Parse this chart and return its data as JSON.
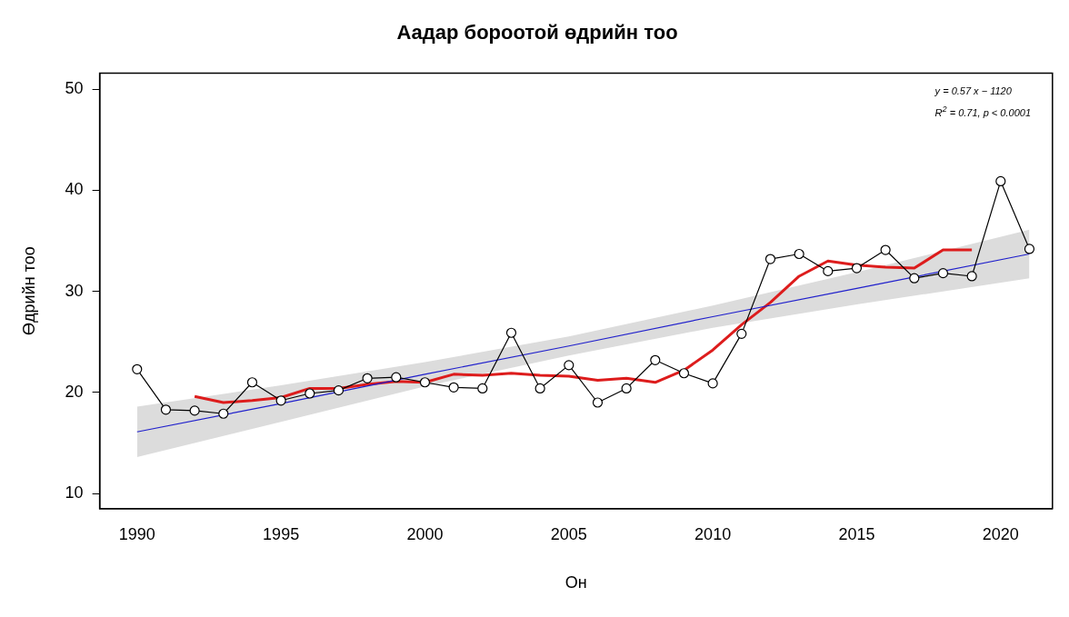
{
  "chart_data": {
    "type": "line",
    "title": "Аадар бороотой өдрийн тоо",
    "xlabel": "Он",
    "ylabel": "Өдрийн тоо",
    "xlim": [
      1988.7,
      2021.8
    ],
    "xticks": [
      1990,
      1995,
      2000,
      2005,
      2010,
      2015,
      2020
    ],
    "ylim": [
      8.5,
      51.6
    ],
    "yticks": [
      10,
      20,
      30,
      40,
      50
    ],
    "grid": false,
    "legend": false,
    "annotations": [
      "y = 0.57 x − 1120",
      "R$^{2}$ = 0.71, p < 0.0001"
    ],
    "series": [
      {
        "color": "#000000",
        "marker": "circle",
        "x": [
          1990,
          1991,
          1992,
          1993,
          1994,
          1995,
          1996,
          1997,
          1998,
          1999,
          2000,
          2001,
          2002,
          2003,
          2004,
          2005,
          2006,
          2007,
          2008,
          2009,
          2010,
          2011,
          2012,
          2013,
          2014,
          2015,
          2016,
          2017,
          2018,
          2019,
          2020,
          2021
        ],
        "values": [
          22.3,
          18.3,
          18.2,
          17.9,
          21.0,
          19.2,
          19.9,
          20.2,
          21.4,
          21.5,
          21.0,
          20.5,
          20.4,
          25.9,
          20.4,
          22.7,
          19.0,
          20.4,
          23.2,
          21.9,
          20.9,
          25.8,
          33.2,
          33.7,
          32.0,
          32.3,
          34.1,
          31.3,
          31.8,
          31.5,
          40.9,
          34.2
        ]
      },
      {
        "color": "#2020cc",
        "marker": "none",
        "x": [
          1990,
          1995,
          2000,
          2005,
          2010,
          2015,
          2021
        ],
        "values": [
          16.1,
          18.9,
          21.8,
          24.6,
          27.5,
          30.3,
          33.7
        ],
        "lower": [
          13.6,
          17.1,
          20.6,
          23.65,
          26.4,
          28.7,
          31.3
        ],
        "upper": [
          18.6,
          20.7,
          23.0,
          25.55,
          28.6,
          31.9,
          36.1
        ]
      },
      {
        "color": "#dd1c1c",
        "marker": "none",
        "x": [
          1992,
          1993,
          1994,
          1995,
          1996,
          1997,
          1998,
          1999,
          2000,
          2001,
          2002,
          2003,
          2004,
          2005,
          2006,
          2007,
          2008,
          2009,
          2010,
          2011,
          2012,
          2013,
          2014,
          2015,
          2016,
          2017,
          2018,
          2019
        ],
        "values": [
          19.6,
          19.0,
          19.2,
          19.5,
          20.4,
          20.4,
          20.8,
          21.1,
          21.0,
          21.8,
          21.7,
          21.9,
          21.7,
          21.6,
          21.2,
          21.4,
          21.0,
          22.2,
          24.2,
          26.7,
          28.9,
          31.5,
          33.0,
          32.6,
          32.4,
          32.3,
          34.1,
          34.1
        ]
      }
    ]
  }
}
